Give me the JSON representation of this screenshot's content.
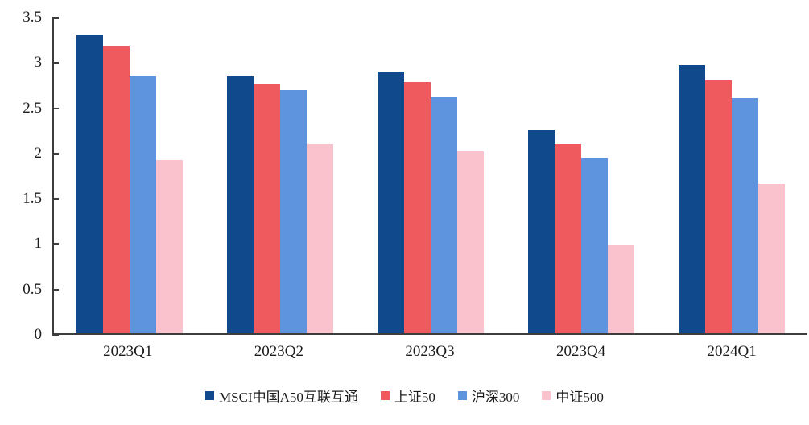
{
  "chart_data": {
    "type": "bar",
    "title": "",
    "xlabel": "",
    "ylabel": "",
    "categories": [
      "2023Q1",
      "2023Q2",
      "2023Q3",
      "2023Q4",
      "2024Q1"
    ],
    "series": [
      {
        "name": "MSCI中国A50互联互通",
        "color": "#10498C",
        "values": [
          3.3,
          2.85,
          2.9,
          2.26,
          2.97
        ]
      },
      {
        "name": "上证50",
        "color": "#EE5A5E",
        "values": [
          3.19,
          2.77,
          2.79,
          2.1,
          2.8
        ]
      },
      {
        "name": "沪深300",
        "color": "#5E93DE",
        "values": [
          2.85,
          2.7,
          2.62,
          1.95,
          2.61
        ]
      },
      {
        "name": "中证500",
        "color": "#FAC2CC",
        "values": [
          1.92,
          2.1,
          2.02,
          0.98,
          1.66
        ]
      }
    ],
    "ylim": [
      0,
      3.5
    ],
    "yticks": [
      0,
      0.5,
      1,
      1.5,
      2,
      2.5,
      3,
      3.5
    ],
    "grid": false,
    "legend_position": "bottom",
    "axis_color": "#3d3d3d"
  }
}
